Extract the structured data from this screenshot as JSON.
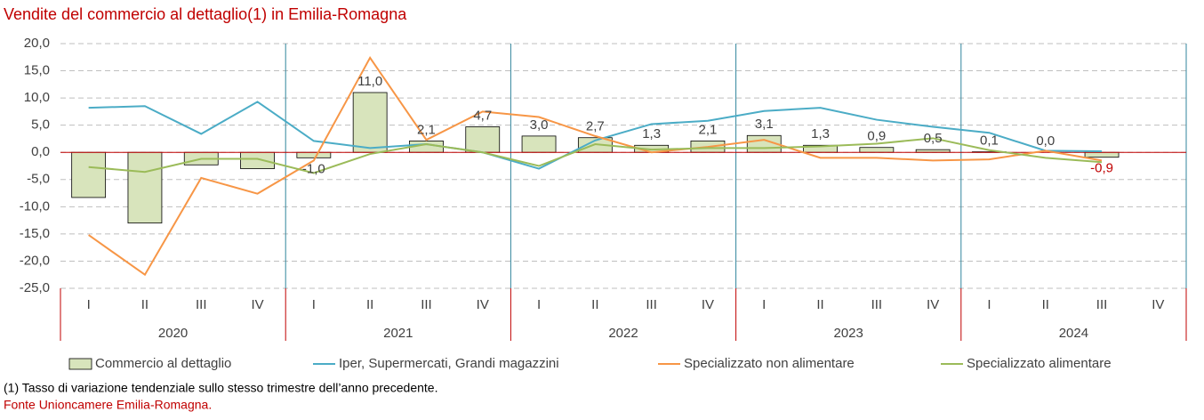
{
  "chart_data": {
    "type": "bar_line",
    "title": "Vendite del commercio al dettaglio(1) in Emilia-Romagna",
    "categories": [
      "I",
      "II",
      "III",
      "IV",
      "I",
      "II",
      "III",
      "IV",
      "I",
      "II",
      "III",
      "IV",
      "I",
      "II",
      "III",
      "IV",
      "I",
      "II",
      "III",
      "IV"
    ],
    "groups": [
      "2020",
      "2021",
      "2022",
      "2023",
      "2024"
    ],
    "series": [
      {
        "name": "Commercio al dettaglio",
        "kind": "bar",
        "color": "#d8e4bc",
        "values": [
          -8.3,
          -13.0,
          -2.3,
          -3.0,
          -1.0,
          11.0,
          2.1,
          4.7,
          3.0,
          2.7,
          1.3,
          2.1,
          3.1,
          1.3,
          0.9,
          0.5,
          0.1,
          0.0,
          -0.9,
          null
        ],
        "value_labels": [
          null,
          null,
          null,
          null,
          "-1,0",
          "11,0",
          "2,1",
          "4,7",
          "3,0",
          "2,7",
          "1,3",
          "2,1",
          "3,1",
          "1,3",
          "0,9",
          "0,5",
          "0,1",
          "0,0",
          "-0,9",
          null
        ]
      },
      {
        "name": "Iper, Supermercati, Grandi magazzini",
        "kind": "line",
        "color": "#4bacc6",
        "values": [
          8.2,
          8.5,
          3.4,
          9.3,
          2.1,
          0.8,
          1.5,
          0.0,
          -3.0,
          2.2,
          5.2,
          5.8,
          7.6,
          8.2,
          6.0,
          4.7,
          3.6,
          0.3,
          0.2,
          null
        ]
      },
      {
        "name": "Specializzato non alimentare",
        "kind": "line",
        "color": "#f79646",
        "values": [
          -15.2,
          -22.5,
          -4.7,
          -7.6,
          -1.5,
          17.4,
          2.3,
          7.5,
          6.5,
          3.0,
          0.0,
          1.0,
          2.3,
          -1.0,
          -1.0,
          -1.5,
          -1.3,
          0.3,
          -1.5,
          null
        ]
      },
      {
        "name": "Specializzato alimentare",
        "kind": "line",
        "color": "#9bbb59",
        "values": [
          -2.7,
          -3.6,
          -1.2,
          -1.2,
          -3.8,
          -0.3,
          1.5,
          0.0,
          -2.5,
          1.5,
          0.5,
          0.8,
          0.8,
          1.1,
          1.6,
          2.6,
          0.4,
          -1.0,
          -1.8,
          null
        ]
      }
    ],
    "ylim": [
      -25,
      20
    ],
    "yticks": [
      {
        "value": -25,
        "label": "-25,0"
      },
      {
        "value": -20,
        "label": "-20,0"
      },
      {
        "value": -15,
        "label": "-15,0"
      },
      {
        "value": -10,
        "label": "-10,0"
      },
      {
        "value": -5,
        "label": "-5,0"
      },
      {
        "value": 0,
        "label": "0,0"
      },
      {
        "value": 5,
        "label": "5,0"
      },
      {
        "value": 10,
        "label": "10,0"
      },
      {
        "value": 15,
        "label": "15,0"
      },
      {
        "value": 20,
        "label": "20,0"
      }
    ],
    "grid": true,
    "note": "(1) Tasso di variazione tendenziale sullo stesso trimestre dell’anno precedente.",
    "source": "Fonte Unioncamere Emilia-Romagna."
  }
}
